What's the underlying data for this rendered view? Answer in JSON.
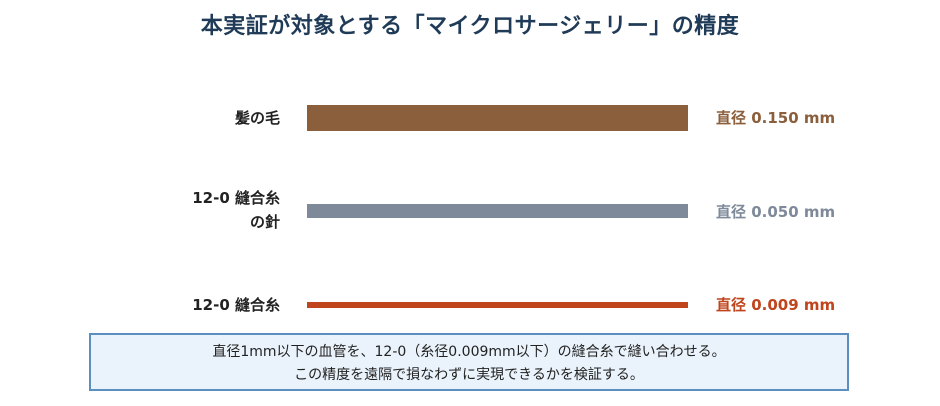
{
  "title": "本実証が対象とする「マイクロサージェリー」の精度",
  "rows": [
    {
      "label_lines": [
        "髪の毛"
      ],
      "value": "直径 0.150 mm",
      "diameter_mm": 0.15,
      "color": "#8b5e3c"
    },
    {
      "label_lines": [
        "12-0 縫合糸",
        "の針"
      ],
      "value": "直径 0.050 mm",
      "diameter_mm": 0.05,
      "color": "#7e8a9a"
    },
    {
      "label_lines": [
        "12-0 縫合糸"
      ],
      "value": "直径 0.009 mm",
      "diameter_mm": 0.009,
      "color": "#c0441c"
    }
  ],
  "note": {
    "line1": "直径1mm以下の血管を、12-0（糸径0.009mm以下）の縫合糸で縫い合わせる。",
    "line2": "この精度を遠隔で損なわずに実現できるかを検証する。"
  }
}
